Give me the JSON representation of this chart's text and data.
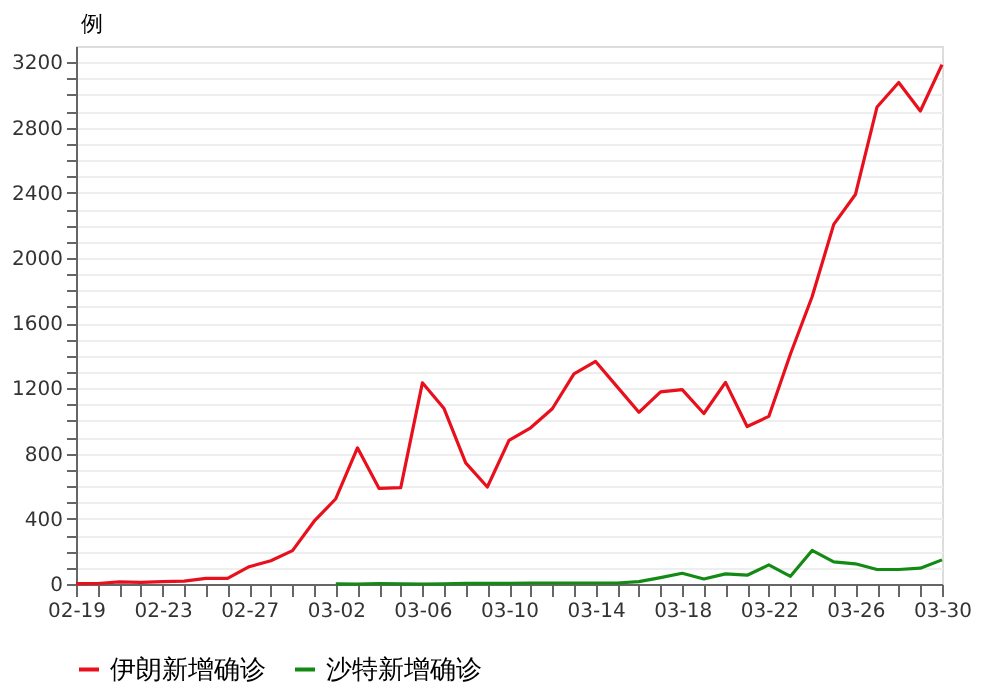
{
  "chart_data": {
    "type": "line",
    "ylabel": "例",
    "categories": [
      "02-19",
      null,
      null,
      null,
      "02-23",
      null,
      null,
      null,
      "02-27",
      null,
      null,
      null,
      "03-02",
      null,
      null,
      null,
      "03-06",
      null,
      null,
      null,
      "03-10",
      null,
      null,
      null,
      "03-14",
      null,
      null,
      null,
      "03-18",
      null,
      null,
      null,
      "03-22",
      null,
      null,
      null,
      "03-26",
      null,
      null,
      null,
      "03-30"
    ],
    "series": [
      {
        "name": "伊朗新增确诊",
        "color": "#e8101c",
        "values": [
          2,
          3,
          13,
          10,
          15,
          18,
          34,
          34,
          106,
          143,
          205,
          385,
          523,
          835,
          586,
          591,
          1234,
          1076,
          743,
          595,
          881,
          958,
          1075,
          1289,
          1365,
          1209,
          1053,
          1178,
          1192,
          1046,
          1237,
          966,
          1028,
          1411,
          1762,
          2206,
          2389,
          2926,
          3076,
          2901,
          3186
        ]
      },
      {
        "name": "沙特新增确诊",
        "color": "#138a13",
        "values": [
          null,
          null,
          null,
          null,
          null,
          null,
          null,
          null,
          null,
          null,
          null,
          null,
          1,
          0,
          3,
          1,
          0,
          1,
          4,
          4,
          4,
          6,
          6,
          6,
          6,
          6,
          15,
          39,
          66,
          31,
          62,
          54,
          117,
          47,
          206,
          136,
          124,
          89,
          89,
          97,
          148
        ]
      }
    ],
    "ylim": [
      0,
      3300
    ],
    "yticks": [
      0,
      {
        "value": 100,
        "label": null
      },
      {
        "value": 200,
        "label": null
      },
      {
        "value": 300,
        "label": null
      },
      400,
      {
        "value": 500,
        "label": null
      },
      {
        "value": 600,
        "label": null
      },
      {
        "value": 700,
        "label": null
      },
      800,
      {
        "value": 900,
        "label": null
      },
      {
        "value": 1000,
        "label": null
      },
      {
        "value": 1100,
        "label": null
      },
      1200,
      {
        "value": 1300,
        "label": null
      },
      {
        "value": 1400,
        "label": null
      },
      {
        "value": 1500,
        "label": null
      },
      1600,
      {
        "value": 1700,
        "label": null
      },
      {
        "value": 1800,
        "label": null
      },
      {
        "value": 1900,
        "label": null
      },
      2000,
      {
        "value": 2100,
        "label": null
      },
      {
        "value": 2200,
        "label": null
      },
      {
        "value": 2300,
        "label": null
      },
      2400,
      {
        "value": 2500,
        "label": null
      },
      {
        "value": 2600,
        "label": null
      },
      {
        "value": 2700,
        "label": null
      },
      2800,
      {
        "value": 2900,
        "label": null
      },
      {
        "value": 3000,
        "label": null
      },
      {
        "value": 3100,
        "label": null
      },
      3200
    ],
    "grid": "y",
    "legend": "bottom",
    "line_style": "solid",
    "marker": "none"
  }
}
